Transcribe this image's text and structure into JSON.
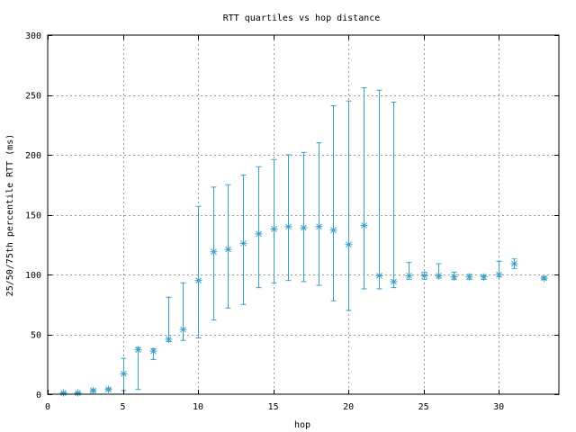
{
  "chart_data": {
    "type": "scatter",
    "title": "RTT quartiles vs hop distance",
    "xlabel": "hop",
    "ylabel": "25/50/75th percentile RTT (ms)",
    "xlim": [
      0,
      34
    ],
    "ylim": [
      0,
      300
    ],
    "xticks": [
      0,
      5,
      10,
      15,
      20,
      25,
      30
    ],
    "yticks": [
      0,
      50,
      100,
      150,
      200,
      250,
      300
    ],
    "grid": true,
    "series": [
      {
        "color": "#3aa0c8",
        "marker": "asterisk",
        "points": [
          {
            "x": 1,
            "p25": 0.5,
            "p50": 1,
            "p75": 1.5
          },
          {
            "x": 2,
            "p25": 0.5,
            "p50": 1,
            "p75": 1.5
          },
          {
            "x": 3,
            "p25": 2,
            "p50": 3,
            "p75": 4
          },
          {
            "x": 4,
            "p25": 3,
            "p50": 4,
            "p75": 5
          },
          {
            "x": 5,
            "p25": 3,
            "p50": 17,
            "p75": 30
          },
          {
            "x": 6,
            "p25": 4,
            "p50": 37,
            "p75": 39
          },
          {
            "x": 7,
            "p25": 29,
            "p50": 36,
            "p75": 38
          },
          {
            "x": 8,
            "p25": 44,
            "p50": 46,
            "p75": 81
          },
          {
            "x": 9,
            "p25": 45,
            "p50": 54,
            "p75": 93
          },
          {
            "x": 10,
            "p25": 47,
            "p50": 95,
            "p75": 157
          },
          {
            "x": 11,
            "p25": 62,
            "p50": 119,
            "p75": 173
          },
          {
            "x": 12,
            "p25": 72,
            "p50": 121,
            "p75": 175
          },
          {
            "x": 13,
            "p25": 75,
            "p50": 126,
            "p75": 183
          },
          {
            "x": 14,
            "p25": 89,
            "p50": 134,
            "p75": 190
          },
          {
            "x": 15,
            "p25": 93,
            "p50": 138,
            "p75": 196
          },
          {
            "x": 16,
            "p25": 95,
            "p50": 140,
            "p75": 200
          },
          {
            "x": 17,
            "p25": 94,
            "p50": 139,
            "p75": 202
          },
          {
            "x": 18,
            "p25": 91,
            "p50": 140,
            "p75": 210
          },
          {
            "x": 19,
            "p25": 78,
            "p50": 137,
            "p75": 241
          },
          {
            "x": 20,
            "p25": 70,
            "p50": 125,
            "p75": 245
          },
          {
            "x": 21,
            "p25": 88,
            "p50": 141,
            "p75": 256
          },
          {
            "x": 22,
            "p25": 88,
            "p50": 99,
            "p75": 254
          },
          {
            "x": 23,
            "p25": 89,
            "p50": 94,
            "p75": 244
          },
          {
            "x": 24,
            "p25": 96,
            "p50": 99,
            "p75": 110
          },
          {
            "x": 25,
            "p25": 96,
            "p50": 99,
            "p75": 102
          },
          {
            "x": 26,
            "p25": 97,
            "p50": 99,
            "p75": 109
          },
          {
            "x": 27,
            "p25": 96,
            "p50": 98,
            "p75": 102
          },
          {
            "x": 28,
            "p25": 96,
            "p50": 98,
            "p75": 100
          },
          {
            "x": 29,
            "p25": 96,
            "p50": 98,
            "p75": 99
          },
          {
            "x": 30,
            "p25": 98,
            "p50": 100,
            "p75": 111
          },
          {
            "x": 31,
            "p25": 105,
            "p50": 109,
            "p75": 113
          },
          {
            "x": 33,
            "p25": 96,
            "p50": 97,
            "p75": 98
          }
        ]
      }
    ]
  }
}
